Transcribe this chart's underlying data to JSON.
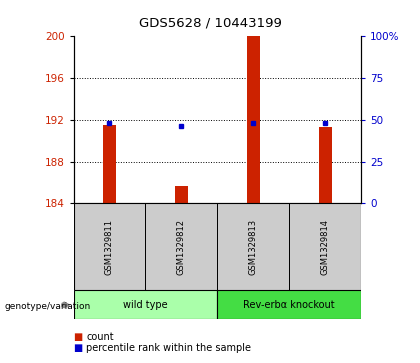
{
  "title": "GDS5628 / 10443199",
  "samples": [
    "GSM1329811",
    "GSM1329812",
    "GSM1329813",
    "GSM1329814"
  ],
  "bar_base": 184,
  "bar_tops": [
    191.5,
    185.7,
    200.0,
    191.3
  ],
  "percentile_values": [
    191.65,
    191.45,
    191.65,
    191.65
  ],
  "ylim_left": [
    184,
    200
  ],
  "ylim_right": [
    0,
    100
  ],
  "yticks_left": [
    184,
    188,
    192,
    196,
    200
  ],
  "yticks_right": [
    0,
    25,
    50,
    75,
    100
  ],
  "ytick_labels_right": [
    "0",
    "25",
    "50",
    "75",
    "100%"
  ],
  "bar_color": "#cc2200",
  "dot_color": "#0000cc",
  "groups": [
    {
      "label": "wild type",
      "samples": [
        0,
        1
      ],
      "color": "#aaffaa"
    },
    {
      "label": "Rev-erbα knockout",
      "samples": [
        2,
        3
      ],
      "color": "#44dd44"
    }
  ],
  "genotype_label": "genotype/variation",
  "legend_count": "count",
  "legend_pct": "percentile rank within the sample"
}
